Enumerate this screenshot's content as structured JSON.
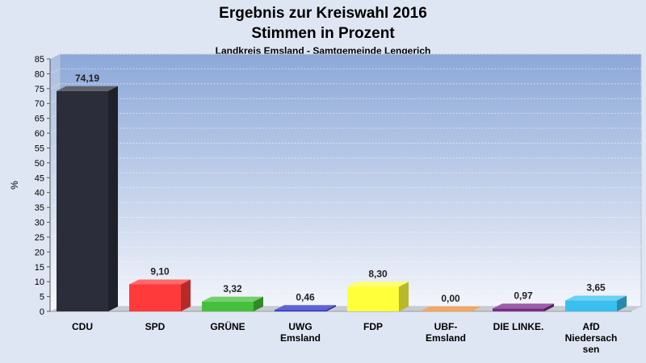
{
  "header": {
    "title_line1": "Ergebnis zur Kreiswahl 2016",
    "title_line2": "Stimmen in Prozent",
    "subtitle": "Landkreis Emsland - Samtgemeinde Lengerich"
  },
  "chart_data": {
    "type": "bar",
    "title": "Ergebnis zur Kreiswahl 2016 Stimmen in Prozent",
    "subtitle": "Landkreis Emsland - Samtgemeinde Lengerich",
    "xlabel": "",
    "ylabel": "%",
    "ylim": [
      0,
      85
    ],
    "ytick_step": 5,
    "grid": true,
    "categories": [
      [
        "CDU"
      ],
      [
        "SPD"
      ],
      [
        "GRÜNE"
      ],
      [
        "UWG",
        "Emsland"
      ],
      [
        "FDP"
      ],
      [
        "UBF-",
        "Emsland"
      ],
      [
        "DIE LINKE."
      ],
      [
        "AfD",
        "Niedersach",
        "sen"
      ]
    ],
    "values": [
      74.19,
      9.1,
      3.32,
      0.46,
      8.3,
      0.0,
      0.97,
      3.65
    ],
    "value_labels": [
      "74,19",
      "9,10",
      "3,32",
      "0,46",
      "8,30",
      "0,00",
      "0,97",
      "3,65"
    ],
    "colors": [
      "#2b2e3a",
      "#ff3a3a",
      "#44c03a",
      "#2b2fc8",
      "#ffff3a",
      "#f08a2a",
      "#7a2a8a",
      "#3ac0ee"
    ]
  }
}
